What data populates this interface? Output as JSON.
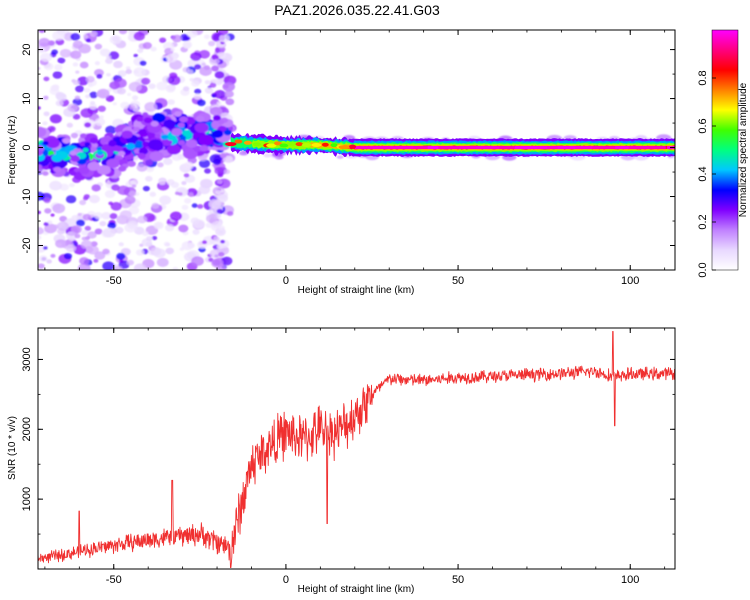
{
  "title": "PAZ1.2026.035.22.41.G03",
  "chart_data": [
    {
      "type": "heatmap",
      "name": "spectrogram",
      "xlabel": "Height of straight line (km)",
      "ylabel": "Frequency (Hz)",
      "xlim": [
        -72,
        113
      ],
      "ylim": [
        -25,
        24
      ],
      "xticks": [
        -50,
        0,
        50,
        100
      ],
      "yticks": [
        -20,
        -10,
        0,
        10,
        20
      ],
      "colorbar": {
        "label": "Normalized spectral amplitude",
        "range": [
          0.0,
          1.0
        ],
        "ticks": [
          0.0,
          0.2,
          0.4,
          0.6,
          0.8
        ],
        "colormap": [
          "#ffffff",
          "#e8d8ff",
          "#c080ff",
          "#8000ff",
          "#0000ff",
          "#00c8ff",
          "#00ff80",
          "#40ff00",
          "#ffff00",
          "#ff8000",
          "#ff0000",
          "#ff0080",
          "#ff00ff"
        ]
      },
      "signal_track": [
        {
          "x": -70,
          "freq": -1.0,
          "amp": 0.4
        },
        {
          "x": -60,
          "freq": -2.0,
          "amp": 0.42
        },
        {
          "x": -50,
          "freq": -1.0,
          "amp": 0.35
        },
        {
          "x": -40,
          "freq": 3.0,
          "amp": 0.45
        },
        {
          "x": -30,
          "freq": 3.0,
          "amp": 0.35
        },
        {
          "x": -20,
          "freq": 3.0,
          "amp": 0.38
        },
        {
          "x": -16,
          "freq": 1.0,
          "amp": 0.6
        },
        {
          "x": 0,
          "freq": 0.5,
          "amp": 0.65
        },
        {
          "x": 10,
          "freq": 0.5,
          "amp": 0.75
        },
        {
          "x": 20,
          "freq": 0.0,
          "amp": 0.95
        },
        {
          "x": 50,
          "freq": 0.0,
          "amp": 0.97
        },
        {
          "x": 80,
          "freq": 0.0,
          "amp": 0.95
        },
        {
          "x": 113,
          "freq": 0.0,
          "amp": 0.95
        }
      ]
    },
    {
      "type": "line",
      "name": "snr",
      "xlabel": "Height of straight line (km)",
      "ylabel": "SNR (10 * v/v)",
      "xlim": [
        -72,
        113
      ],
      "ylim": [
        0,
        3450
      ],
      "xticks": [
        -50,
        0,
        50,
        100
      ],
      "yticks": [
        1000,
        2000,
        3000
      ],
      "color": "#f03030",
      "trend": {
        "x": [
          -72,
          -65,
          -55,
          -45,
          -35,
          -25,
          -16,
          -10,
          -5,
          0,
          5,
          10,
          15,
          20,
          25,
          30,
          40,
          50,
          60,
          70,
          80,
          90,
          95,
          100,
          113
        ],
        "y": [
          150,
          200,
          300,
          380,
          450,
          500,
          300,
          1500,
          1750,
          1950,
          1850,
          2000,
          1950,
          2200,
          2500,
          2720,
          2700,
          2740,
          2760,
          2780,
          2800,
          2830,
          2750,
          2790,
          2800
        ]
      },
      "spikes": [
        {
          "x": 95,
          "y": 3400
        },
        {
          "x": 95.5,
          "y": 2050
        },
        {
          "x": -16,
          "y": 20
        },
        {
          "x": 12,
          "y": 650
        },
        {
          "x": -33,
          "y": 1270
        },
        {
          "x": -60,
          "y": 830
        }
      ]
    }
  ]
}
